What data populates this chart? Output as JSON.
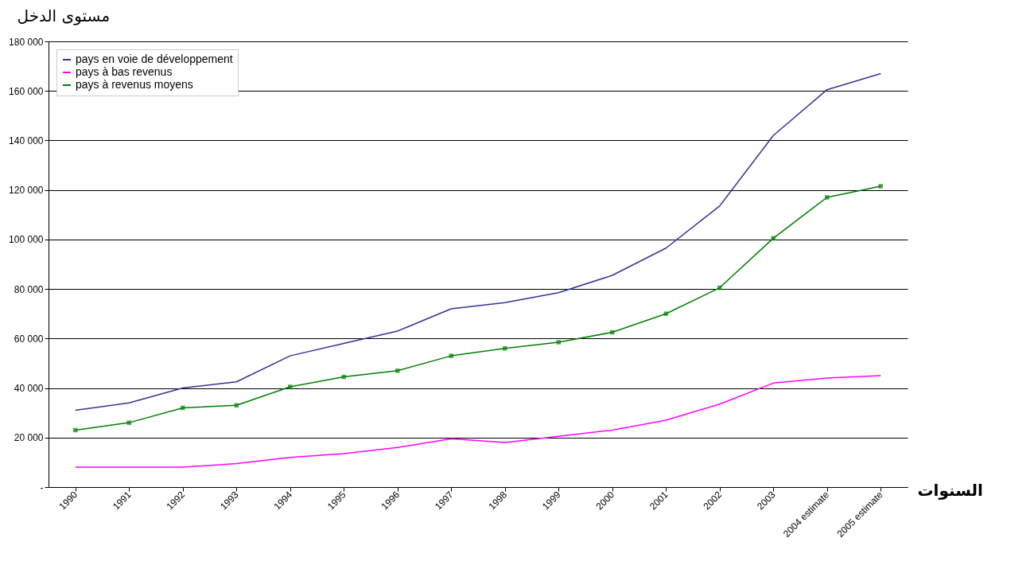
{
  "chart_data": {
    "type": "line",
    "ylabel": "مستوى الدخل",
    "xlabel": "السنوات",
    "categories": [
      "1990",
      "1991",
      "1992",
      "1993",
      "1994",
      "1995",
      "1996",
      "1997",
      "1998",
      "1999",
      "2000",
      "2001",
      "2002",
      "2003",
      "2004 estimate",
      "2005 estimate"
    ],
    "series": [
      {
        "name": "pays en voie de développement",
        "color": "#333399",
        "marker": "none",
        "values": [
          31000,
          34000,
          40000,
          42500,
          53000,
          58000,
          63000,
          72000,
          74500,
          78500,
          85500,
          96500,
          113500,
          142000,
          160500,
          167000
        ]
      },
      {
        "name": "pays à bas revenus",
        "color": "#ff00ff",
        "marker": "none",
        "values": [
          8000,
          8000,
          8000,
          9500,
          12000,
          13500,
          16000,
          19500,
          18000,
          20500,
          23000,
          27000,
          33500,
          42000,
          44000,
          45000
        ]
      },
      {
        "name": "pays à revenus moyens",
        "color": "#008000",
        "marker": "square",
        "values": [
          23000,
          26000,
          32000,
          33000,
          40500,
          44500,
          47000,
          53000,
          56000,
          58500,
          62500,
          70000,
          80500,
          100500,
          117000,
          121500
        ]
      }
    ],
    "ylim": [
      0,
      180000
    ],
    "yticks": [
      {
        "value": 0,
        "label": "-"
      },
      {
        "value": 20000,
        "label": "20 000"
      },
      {
        "value": 40000,
        "label": "40 000"
      },
      {
        "value": 60000,
        "label": "60 000"
      },
      {
        "value": 80000,
        "label": "80 000"
      },
      {
        "value": 100000,
        "label": "100 000"
      },
      {
        "value": 120000,
        "label": "120 000"
      },
      {
        "value": 140000,
        "label": "140 000"
      },
      {
        "value": 160000,
        "label": "160 000"
      },
      {
        "value": 180000,
        "label": "180 000"
      }
    ],
    "grid": "y",
    "legend": "top left",
    "line_style": "solid"
  }
}
